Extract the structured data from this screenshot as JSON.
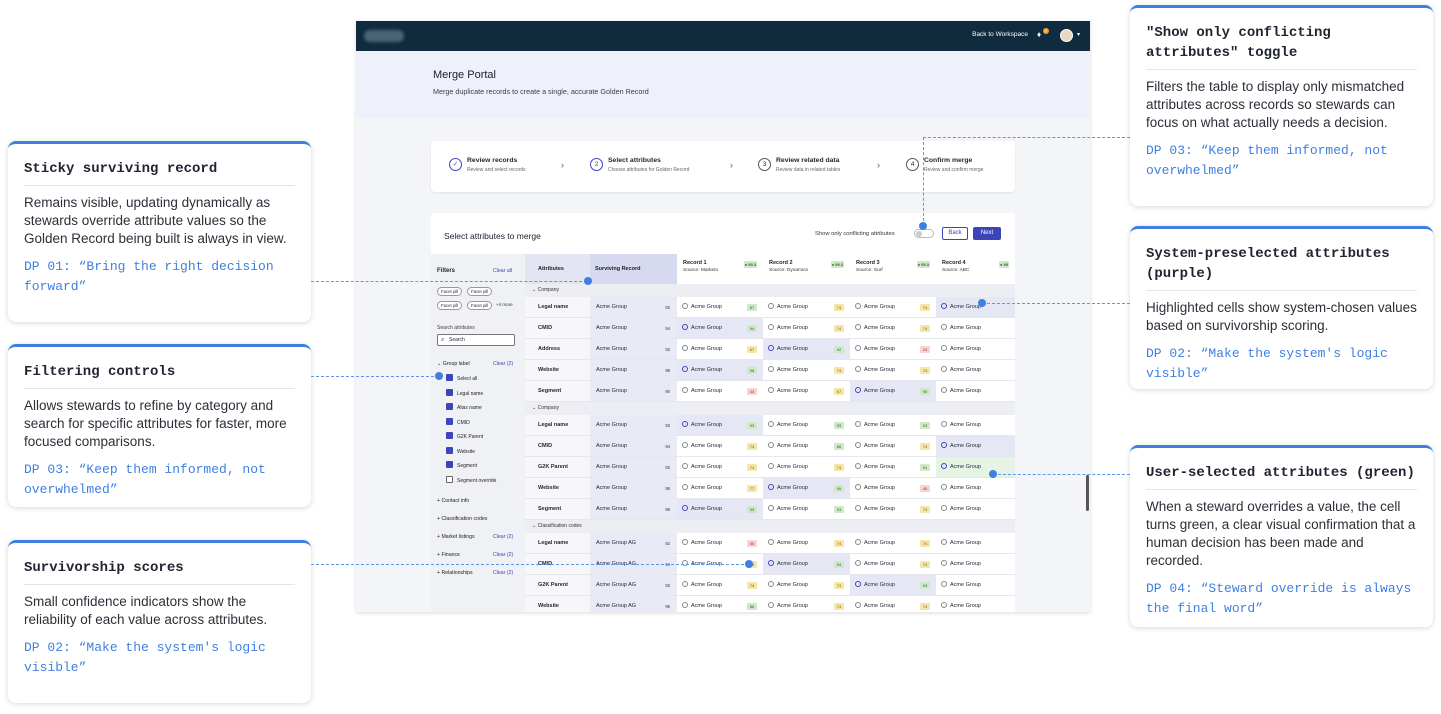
{
  "callouts": {
    "toggle": {
      "title": "\"Show only conflicting attributes\" toggle",
      "body": "Filters the table to display only mismatched attributes across records so stewards can focus on what actually needs a decision.",
      "dp": "DP 03: “Keep them informed, not overwhelmed”"
    },
    "sticky": {
      "title": "Sticky surviving record",
      "body": "Remains visible, updating dynamically as stewards override attribute values so the Golden Record being built is always in view.",
      "dp": "DP 01: “Bring the right decision forward”"
    },
    "preselected": {
      "title": "System-preselected attributes (purple)",
      "body": "Highlighted cells show system-chosen values based on survivorship scoring.",
      "dp": "DP 02: “Make the system's logic visible”"
    },
    "filtering": {
      "title": "Filtering controls",
      "body": "Allows stewards to refine by category and search for specific attributes for faster, more focused comparisons.",
      "dp": "DP 03: “Keep them informed, not overwhelmed”"
    },
    "userselected": {
      "title": "User-selected attributes (green)",
      "body": "When a steward overrides a value, the cell turns green, a clear visual confirmation that a human decision has been made and recorded.",
      "dp": "DP 04: “Steward override is always the final word”"
    },
    "scores": {
      "title": "Survivorship scores",
      "body": "Small confidence indicators show the reliability of each value across attributes.",
      "dp": "DP 02: “Make the system's logic visible”"
    }
  },
  "app": {
    "back_to_workspace": "Back to Workspace",
    "notif_count": "1",
    "hero_title": "Merge Portal",
    "hero_subtitle": "Merge duplicate records to create a single, accurate Golden Record",
    "steps": [
      {
        "num": "✓",
        "title": "Review records",
        "sub": "Review and select records"
      },
      {
        "num": "2",
        "title": "Select attributes",
        "sub": "Choose attributes for Golden Record"
      },
      {
        "num": "3",
        "title": "Review related data",
        "sub": "Review data in related tables"
      },
      {
        "num": "4",
        "title": "Confirm merge",
        "sub": "Review and confirm merge"
      }
    ],
    "panel_title": "Select attributes to merge",
    "toggle_label": "Show only conflicting attributes",
    "back_label": "Back",
    "next_label": "Next",
    "filters": {
      "title": "Filters",
      "clear_all": "Clear all",
      "pills": [
        "Facet pill",
        "Facet pill",
        "Facet pill",
        "Facet pill"
      ],
      "more": "+4 more",
      "search_label": "Search attributes",
      "search_placeholder": "Search",
      "group_label": "Group label",
      "group_clear": "Clear (2)",
      "checks": [
        "Select all",
        "Legal name",
        "Alias name",
        "CMID",
        "G2K Parent",
        "Website",
        "Segment",
        "Segment override"
      ],
      "groups": [
        {
          "label": "Contact info",
          "clear": ""
        },
        {
          "label": "Classification codes",
          "clear": ""
        },
        {
          "label": "Market listings",
          "clear": "Clear (2)"
        },
        {
          "label": "Finance",
          "clear": "Clear (2)"
        },
        {
          "label": "Relationships",
          "clear": "Clear (2)"
        }
      ]
    },
    "table": {
      "col_attr": "Attributes",
      "col_surv": "Surviving Record",
      "records": [
        {
          "name": "Record 1",
          "source": "Source: Marketo",
          "score": "● 95.3"
        },
        {
          "name": "Record 2",
          "source": "Source: Dynamics",
          "score": "● 95.3"
        },
        {
          "name": "Record 3",
          "source": "Source: Surf",
          "score": "● 95.3"
        },
        {
          "name": "Record 4",
          "source": "Source: ABC",
          "score": "● 95"
        }
      ],
      "sections": [
        {
          "label": "Company",
          "rows": [
            {
              "attr": "Legal name",
              "surv": "Acme Group",
              "sscore": "92",
              "cells": [
                [
                  "Acme Group",
                  "87",
                  "g",
                  ""
                ],
                [
                  "Acme Group",
                  "74",
                  "y",
                  ""
                ],
                [
                  "Acme Group",
                  "74",
                  "y",
                  ""
                ],
                [
                  "Acme Group",
                  "",
                  "",
                  "sys"
                ]
              ]
            },
            {
              "attr": "CMID",
              "surv": "Acme Group",
              "sscore": "94",
              "cells": [
                [
                  "Acme Group",
                  "94",
                  "g",
                  "sys"
                ],
                [
                  "Acme Group",
                  "74",
                  "y",
                  ""
                ],
                [
                  "Acme Group",
                  "74",
                  "y",
                  ""
                ],
                [
                  "Acme Group",
                  "",
                  "",
                  ""
                ]
              ]
            },
            {
              "attr": "Address",
              "surv": "Acme Group",
              "sscore": "92",
              "cells": [
                [
                  "Acme Group",
                  "67",
                  "y",
                  ""
                ],
                [
                  "Acme Group",
                  "92",
                  "g",
                  "sys"
                ],
                [
                  "Acme Group",
                  "24",
                  "r",
                  ""
                ],
                [
                  "Acme Group",
                  "",
                  "",
                  ""
                ]
              ]
            },
            {
              "attr": "Website",
              "surv": "Acme Group",
              "sscore": "98",
              "cells": [
                [
                  "Acme Group",
                  "98",
                  "g",
                  "sys"
                ],
                [
                  "Acme Group",
                  "74",
                  "y",
                  ""
                ],
                [
                  "Acme Group",
                  "74",
                  "y",
                  ""
                ],
                [
                  "Acme Group",
                  "",
                  "",
                  ""
                ]
              ]
            },
            {
              "attr": "Segment",
              "surv": "Acme Group",
              "sscore": "90",
              "cells": [
                [
                  "Acme Group",
                  "43",
                  "r",
                  ""
                ],
                [
                  "Acme Group",
                  "67",
                  "y",
                  ""
                ],
                [
                  "Acme Group",
                  "90",
                  "g",
                  "sys"
                ],
                [
                  "Acme Group",
                  "",
                  "",
                  ""
                ]
              ]
            }
          ]
        },
        {
          "label": "Company",
          "rows": [
            {
              "attr": "Legal name",
              "surv": "Acme Group",
              "sscore": "93",
              "cells": [
                [
                  "Acme Group",
                  "93",
                  "g",
                  "sys"
                ],
                [
                  "Acme Group",
                  "93",
                  "g",
                  ""
                ],
                [
                  "Acme Group",
                  "93",
                  "g",
                  ""
                ],
                [
                  "Acme Group",
                  "",
                  "",
                  ""
                ]
              ]
            },
            {
              "attr": "CMID",
              "surv": "Acme Group",
              "sscore": "94",
              "cells": [
                [
                  "Acme Group",
                  "74",
                  "y",
                  ""
                ],
                [
                  "Acme Group",
                  "86",
                  "g",
                  ""
                ],
                [
                  "Acme Group",
                  "74",
                  "y",
                  ""
                ],
                [
                  "Acme Group",
                  "",
                  "",
                  "sys"
                ]
              ]
            },
            {
              "attr": "G2K Parent",
              "surv": "Acme Group",
              "sscore": "92",
              "cells": [
                [
                  "Acme Group",
                  "74",
                  "y",
                  ""
                ],
                [
                  "Acme Group",
                  "74",
                  "y",
                  ""
                ],
                [
                  "Acme Group",
                  "91",
                  "g",
                  ""
                ],
                [
                  "Acme Group",
                  "",
                  "",
                  "usr"
                ]
              ]
            },
            {
              "attr": "Website",
              "surv": "Acme Group",
              "sscore": "95",
              "cells": [
                [
                  "Acme Group",
                  "77",
                  "y",
                  ""
                ],
                [
                  "Acme Group",
                  "95",
                  "g",
                  "sys"
                ],
                [
                  "Acme Group",
                  "45",
                  "r",
                  ""
                ],
                [
                  "Acme Group",
                  "",
                  "",
                  ""
                ]
              ]
            },
            {
              "attr": "Segment",
              "surv": "Acme Group",
              "sscore": "99",
              "cells": [
                [
                  "Acme Group",
                  "99",
                  "g",
                  "sys"
                ],
                [
                  "Acme Group",
                  "93",
                  "g",
                  ""
                ],
                [
                  "Acme Group",
                  "74",
                  "y",
                  ""
                ],
                [
                  "Acme Group",
                  "",
                  "",
                  ""
                ]
              ]
            }
          ]
        },
        {
          "label": "Classification codes",
          "rows": [
            {
              "attr": "Legal name",
              "surv": "Acme Group AG",
              "sscore": "92",
              "cells": [
                [
                  "Acme Group",
                  "55",
                  "r",
                  ""
                ],
                [
                  "Acme Group",
                  "74",
                  "y",
                  ""
                ],
                [
                  "Acme Group",
                  "74",
                  "y",
                  ""
                ],
                [
                  "Acme Group",
                  "",
                  "",
                  ""
                ]
              ]
            },
            {
              "attr": "CMID",
              "surv": "Acme Group AG",
              "sscore": "94",
              "cells": [
                [
                  "Acme Group",
                  "74",
                  "y",
                  ""
                ],
                [
                  "Acme Group",
                  "94",
                  "g",
                  "sys"
                ],
                [
                  "Acme Group",
                  "74",
                  "y",
                  ""
                ],
                [
                  "Acme Group",
                  "",
                  "",
                  ""
                ]
              ]
            },
            {
              "attr": "G2K Parent",
              "surv": "Acme Group AG",
              "sscore": "92",
              "cells": [
                [
                  "Acme Group",
                  "74",
                  "y",
                  ""
                ],
                [
                  "Acme Group",
                  "74",
                  "y",
                  ""
                ],
                [
                  "Acme Group",
                  "93",
                  "g",
                  "sys"
                ],
                [
                  "Acme Group",
                  "",
                  "",
                  ""
                ]
              ]
            },
            {
              "attr": "Website",
              "surv": "Acme Group AG",
              "sscore": "95",
              "cells": [
                [
                  "Acme Group",
                  "86",
                  "g",
                  ""
                ],
                [
                  "Acme Group",
                  "74",
                  "y",
                  ""
                ],
                [
                  "Acme Group",
                  "74",
                  "y",
                  ""
                ],
                [
                  "Acme Group",
                  "",
                  "",
                  ""
                ]
              ]
            }
          ]
        }
      ]
    }
  }
}
